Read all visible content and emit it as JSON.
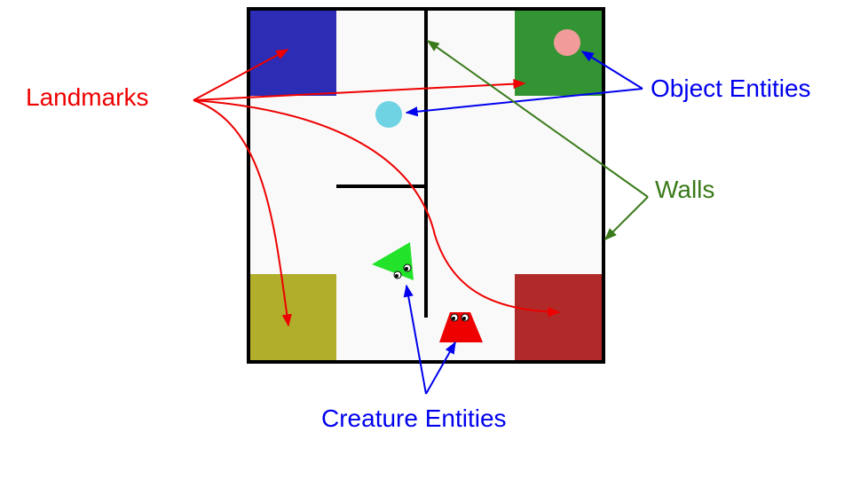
{
  "labels": {
    "landmarks": "Landmarks",
    "object_entities": "Object Entities",
    "walls": "Walls",
    "creature_entities": "Creature Entities"
  },
  "colors": {
    "landmarks_label": "#ee0000",
    "objects_label": "#0000ee",
    "walls_label": "#3a7a1a",
    "creatures_label": "#0000ee",
    "floor": "#f9f9f9",
    "wall": "#000000",
    "landmark_blue": "#2c2cb4",
    "landmark_green": "#339433",
    "landmark_olive": "#b0ae2a",
    "landmark_red": "#b02a2a",
    "object_pink": "#f29b9b",
    "object_cyan": "#6fd3e3",
    "creature_green": "#22e22a",
    "creature_red": "#ee0000"
  }
}
